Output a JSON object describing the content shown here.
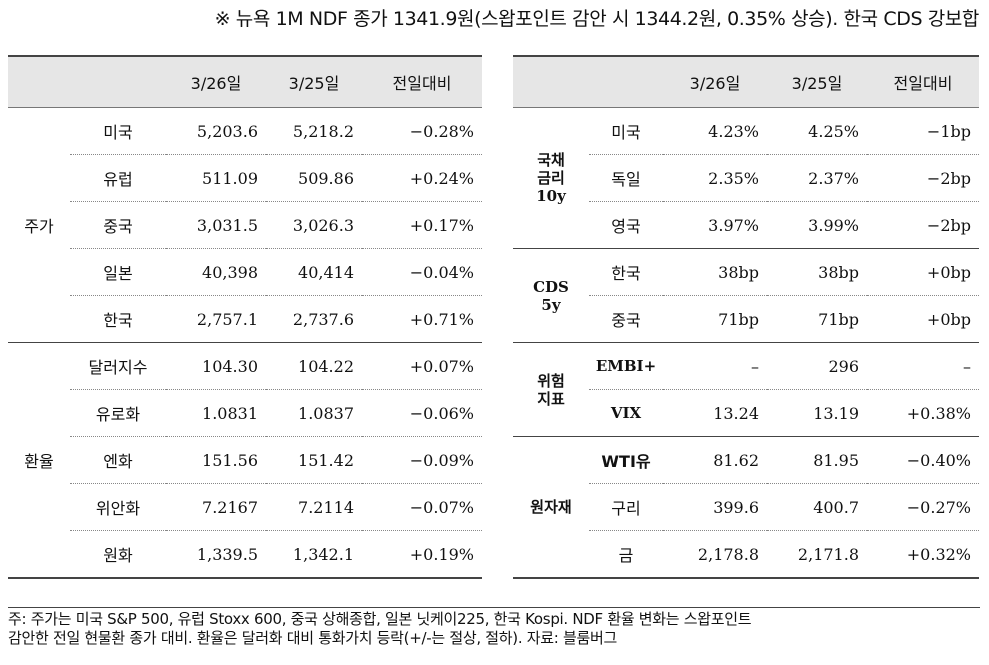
{
  "title": "※ 뉴욕 1M NDF 종가 1341.9원(스왑포인트 감안 시 1344.2원, 0.35% 상승). 한국 CDS 강보합",
  "left_table": {
    "headers": [
      "",
      "",
      "3/26일",
      "3/25일",
      "전일대비"
    ],
    "groups": [
      {
        "label": "주가",
        "rows": [
          {
            "name": "미국",
            "d1": "5,203.6",
            "d2": "5,218.2",
            "chg": "−0.28%"
          },
          {
            "name": "유럽",
            "d1": "511.09",
            "d2": "509.86",
            "chg": "+0.24%"
          },
          {
            "name": "중국",
            "d1": "3,031.5",
            "d2": "3,026.3",
            "chg": "+0.17%"
          },
          {
            "name": "일본",
            "d1": "40,398",
            "d2": "40,414",
            "chg": "−0.04%"
          },
          {
            "name": "한국",
            "d1": "2,757.1",
            "d2": "2,737.6",
            "chg": "+0.71%"
          }
        ]
      },
      {
        "label": "환율",
        "rows": [
          {
            "name": "달러지수",
            "d1": "104.30",
            "d2": "104.22",
            "chg": "+0.07%"
          },
          {
            "name": "유로화",
            "d1": "1.0831",
            "d2": "1.0837",
            "chg": "−0.06%"
          },
          {
            "name": "엔화",
            "d1": "151.56",
            "d2": "151.42",
            "chg": "−0.09%"
          },
          {
            "name": "위안화",
            "d1": "7.2167",
            "d2": "7.2114",
            "chg": "−0.07%"
          },
          {
            "name": "원화",
            "d1": "1,339.5",
            "d2": "1,342.1",
            "chg": "+0.19%"
          }
        ]
      }
    ]
  },
  "right_table": {
    "headers": [
      "",
      "",
      "3/26일",
      "3/25일",
      "전일대비"
    ],
    "groups": [
      {
        "label_line1": "국채",
        "label_line2": "금리",
        "label_line3": "10y",
        "rows": [
          {
            "name": "미국",
            "d1": "4.23%",
            "d2": "4.25%",
            "chg": "−1bp"
          },
          {
            "name": "독일",
            "d1": "2.35%",
            "d2": "2.37%",
            "chg": "−2bp"
          },
          {
            "name": "영국",
            "d1": "3.97%",
            "d2": "3.99%",
            "chg": "−2bp"
          }
        ]
      },
      {
        "label_line1": "CDS",
        "label_line2": "5y",
        "rows": [
          {
            "name": "한국",
            "d1": "38bp",
            "d2": "38bp",
            "chg": "+0bp"
          },
          {
            "name": "중국",
            "d1": "71bp",
            "d2": "71bp",
            "chg": "+0bp"
          }
        ]
      },
      {
        "label_line1": "위험",
        "label_line2": "지표",
        "rows": [
          {
            "name": "EMBI+",
            "d1": "–",
            "d2": "296",
            "chg": "–"
          },
          {
            "name": "VIX",
            "d1": "13.24",
            "d2": "13.19",
            "chg": "+0.38%"
          }
        ]
      },
      {
        "label_line1": "원자재",
        "rows": [
          {
            "name": "WTI유",
            "d1": "81.62",
            "d2": "81.95",
            "chg": "−0.40%"
          },
          {
            "name": "구리",
            "d1": "399.6",
            "d2": "400.7",
            "chg": "−0.27%"
          },
          {
            "name": "금",
            "d1": "2,178.8",
            "d2": "2,171.8",
            "chg": "+0.32%"
          }
        ]
      }
    ]
  },
  "footnote": {
    "line1": "주: 주가는 미국 S&P 500, 유럽 Stoxx 600, 중국 상해종합, 일본 닛케이225, 한국 Kospi. NDF 환율 변화는 스왑포인트",
    "line2": "감안한 전일 현물환 종가 대비. 환율은 달러화 대비 통화가치 등락(+/-는 절상, 절하). 자료: 블룸버그"
  }
}
